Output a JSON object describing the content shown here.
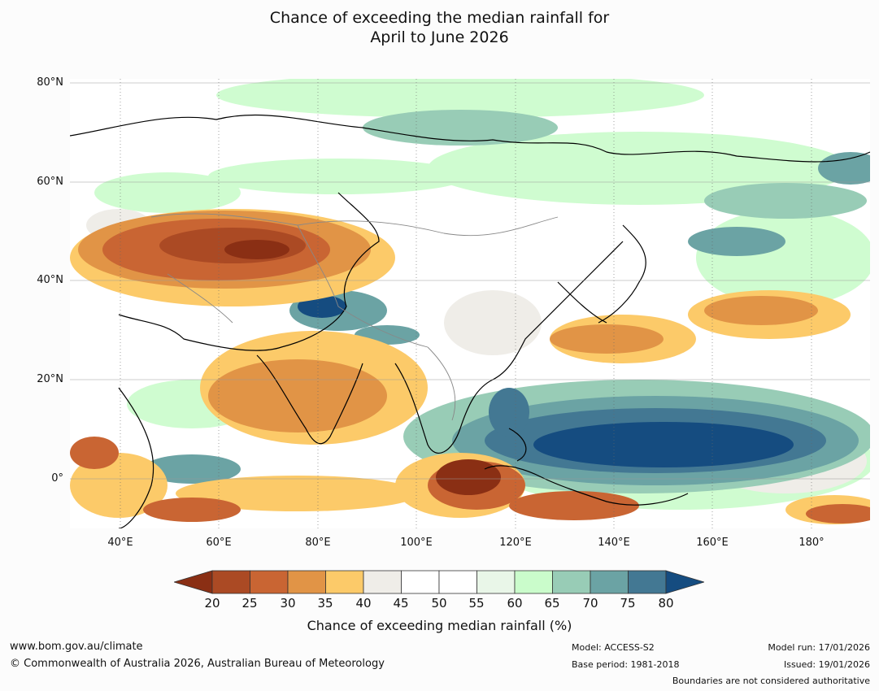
{
  "title": {
    "line1": "Chance of exceeding the median rainfall for",
    "line2": "April to June 2026"
  },
  "map": {
    "region": "Asia",
    "lat_labels": [
      "80°N",
      "60°N",
      "40°N",
      "20°N",
      "0°"
    ],
    "lon_labels": [
      "40°E",
      "60°E",
      "80°E",
      "100°E",
      "120°E",
      "140°E",
      "160°E",
      "180°"
    ]
  },
  "colorbar": {
    "ticks": [
      "20",
      "25",
      "30",
      "35",
      "40",
      "45",
      "50",
      "55",
      "60",
      "65",
      "70",
      "75",
      "80"
    ],
    "label": "Chance of exceeding median rainfall (%)",
    "colors": {
      "below_20": "#8a2f14",
      "20_25": "#ab4a24",
      "25_30": "#c96533",
      "30_35": "#e19446",
      "35_40": "#fcca69",
      "40_45": "#efede8",
      "45_50": "#ffffff",
      "50_55": "#ffffff",
      "55_60": "#e9f6e8",
      "60_65": "#cafccb",
      "65_70": "#98ccb6",
      "70_75": "#6ba3a4",
      "75_80": "#437893",
      "above_80": "#154c80"
    }
  },
  "footer": {
    "website": "www.bom.gov.au/climate",
    "copyright": "© Commonwealth of Australia 2026, Australian Bureau of Meteorology",
    "model": "Model: ACCESS-S2",
    "base_period": "Base period: 1981-2018",
    "model_run": "Model run: 17/01/2026",
    "issued": "Issued: 19/01/2026",
    "disclaimer": "Boundaries are not considered authoritative"
  }
}
